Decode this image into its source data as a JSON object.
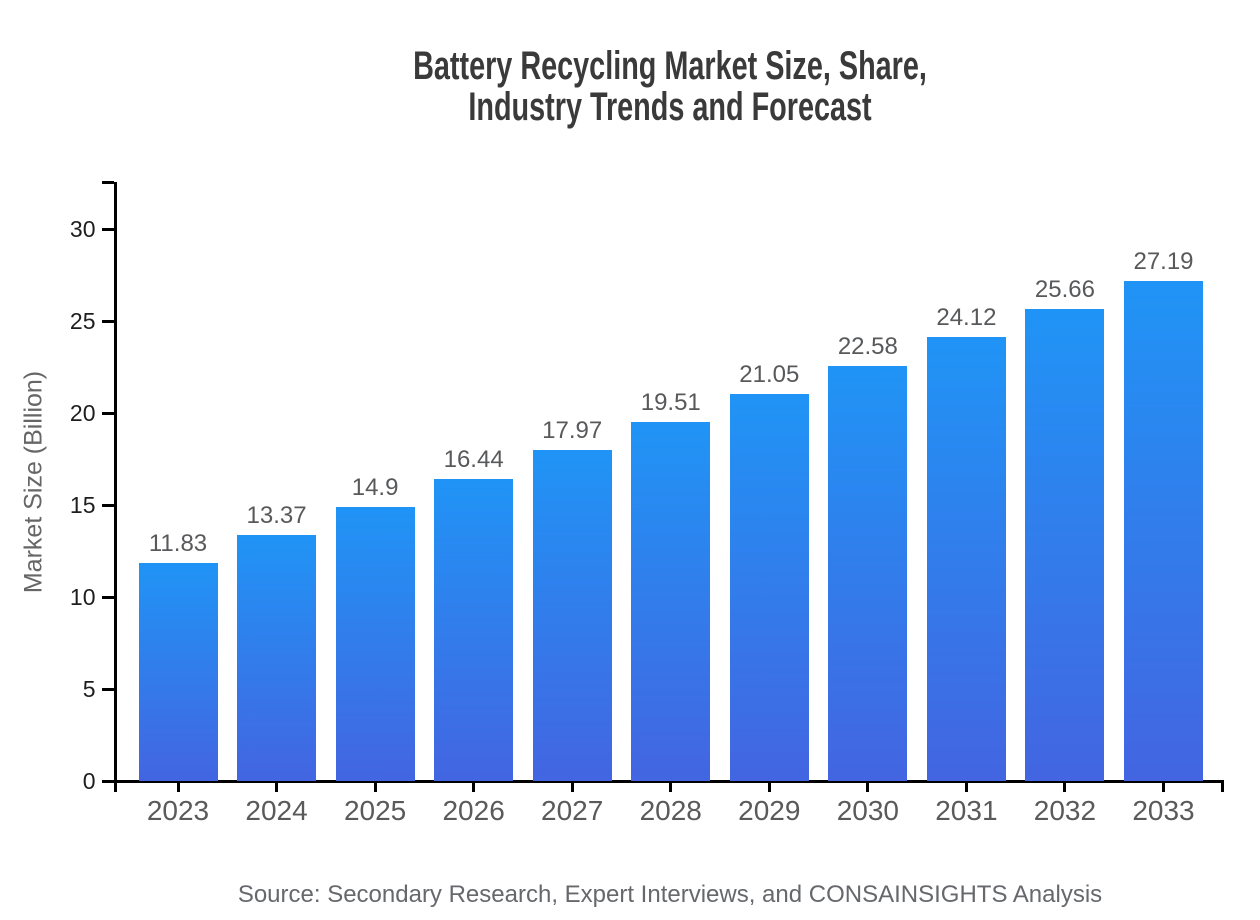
{
  "chart_data": {
    "type": "bar",
    "title": "Battery Recycling Market Size, Share, Industry Trends and Forecast",
    "title_lines": [
      "Battery Recycling Market Size, Share,",
      "Industry Trends and Forecast"
    ],
    "categories": [
      "2023",
      "2024",
      "2025",
      "2026",
      "2027",
      "2028",
      "2029",
      "2030",
      "2031",
      "2032",
      "2033"
    ],
    "values": [
      11.83,
      13.37,
      14.9,
      16.44,
      17.97,
      19.51,
      21.05,
      22.58,
      24.12,
      25.66,
      27.19
    ],
    "value_labels": [
      "11.83",
      "13.37",
      "14.9",
      "16.44",
      "17.97",
      "19.51",
      "21.05",
      "22.58",
      "24.12",
      "25.66",
      "27.19"
    ],
    "xlabel": "",
    "ylabel": "Market Size (Billion)",
    "yticks": [
      0,
      5,
      10,
      15,
      20,
      25,
      30
    ],
    "ylim": [
      0,
      32.6
    ],
    "grid": false,
    "legend": "none",
    "source": "Source: Secondary Research, Expert Interviews, and CONSAINSIGHTS Analysis",
    "colors": {
      "bar_gradient_top": "#2094F6",
      "bar_gradient_bottom": "#4365E1",
      "axis": "#000000",
      "title_text": "#3A3A3A",
      "y_tick_label": "#1E1E1E",
      "category_label": "#5A5A5A",
      "value_label": "#58595B",
      "axis_title": "#666666",
      "source_text": "#66686C",
      "background": "#FFFFFF"
    }
  }
}
